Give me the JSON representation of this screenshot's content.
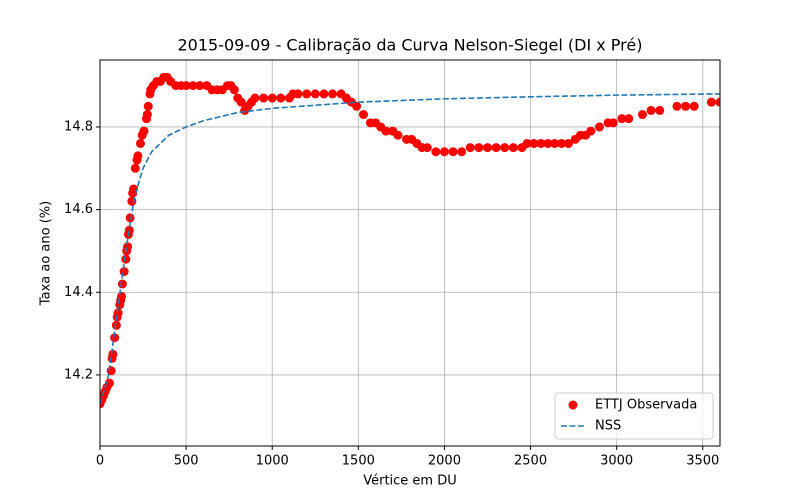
{
  "chart_data": {
    "type": "scatter",
    "title": "2015-09-09 - Calibração da Curva Nelson-Siegel (DI x Pré)",
    "xlabel": "Vértice em DU",
    "ylabel": "Taxa ao ano (%)",
    "xlim": [
      0,
      3600
    ],
    "ylim": [
      14.028,
      14.962
    ],
    "xticks": [
      0,
      500,
      1000,
      1500,
      2000,
      2500,
      3000,
      3500
    ],
    "yticks": [
      14.2,
      14.4,
      14.6,
      14.8
    ],
    "grid": true,
    "legend": "lower right",
    "series": [
      {
        "name": "ETTJ Observada",
        "type": "scatter",
        "color": "#ff0000",
        "x": [
          0,
          10,
          20,
          30,
          40,
          55,
          65,
          70,
          75,
          85,
          95,
          100,
          105,
          115,
          120,
          125,
          130,
          140,
          150,
          155,
          160,
          165,
          170,
          175,
          185,
          190,
          195,
          205,
          215,
          220,
          235,
          245,
          255,
          270,
          275,
          280,
          290,
          295,
          310,
          330,
          350,
          370,
          390,
          410,
          440,
          470,
          500,
          540,
          580,
          620,
          650,
          680,
          710,
          740,
          760,
          780,
          800,
          820,
          840,
          860,
          880,
          900,
          950,
          1000,
          1050,
          1100,
          1120,
          1150,
          1200,
          1250,
          1300,
          1350,
          1400,
          1430,
          1460,
          1490,
          1530,
          1570,
          1600,
          1630,
          1660,
          1700,
          1730,
          1780,
          1810,
          1840,
          1870,
          1900,
          1950,
          2000,
          2050,
          2100,
          2150,
          2200,
          2250,
          2300,
          2350,
          2400,
          2450,
          2480,
          2520,
          2560,
          2600,
          2640,
          2680,
          2720,
          2760,
          2790,
          2820,
          2850,
          2900,
          2950,
          2980,
          3030,
          3070,
          3150,
          3200,
          3250,
          3350,
          3400,
          3450,
          3550,
          3600
        ],
        "values": [
          14.13,
          14.14,
          14.15,
          14.16,
          14.17,
          14.18,
          14.21,
          14.24,
          14.25,
          14.29,
          14.32,
          14.34,
          14.35,
          14.37,
          14.38,
          14.39,
          14.42,
          14.45,
          14.48,
          14.5,
          14.51,
          14.54,
          14.55,
          14.58,
          14.62,
          14.64,
          14.65,
          14.7,
          14.72,
          14.73,
          14.76,
          14.78,
          14.79,
          14.82,
          14.83,
          14.85,
          14.88,
          14.89,
          14.9,
          14.91,
          14.91,
          14.92,
          14.92,
          14.91,
          14.9,
          14.9,
          14.9,
          14.9,
          14.9,
          14.9,
          14.89,
          14.89,
          14.89,
          14.9,
          14.9,
          14.89,
          14.87,
          14.86,
          14.84,
          14.85,
          14.86,
          14.87,
          14.87,
          14.87,
          14.87,
          14.87,
          14.88,
          14.88,
          14.88,
          14.88,
          14.88,
          14.88,
          14.88,
          14.87,
          14.86,
          14.85,
          14.83,
          14.81,
          14.81,
          14.8,
          14.79,
          14.79,
          14.78,
          14.77,
          14.77,
          14.76,
          14.75,
          14.75,
          14.74,
          14.74,
          14.74,
          14.74,
          14.75,
          14.75,
          14.75,
          14.75,
          14.75,
          14.75,
          14.75,
          14.76,
          14.76,
          14.76,
          14.76,
          14.76,
          14.76,
          14.76,
          14.77,
          14.78,
          14.78,
          14.79,
          14.8,
          14.81,
          14.81,
          14.82,
          14.82,
          14.83,
          14.84,
          14.84,
          14.85,
          14.85,
          14.85,
          14.86,
          14.86
        ]
      },
      {
        "name": "NSS",
        "type": "line",
        "color": "#1f77b4",
        "linestyle": "dashed",
        "x": [
          0,
          50,
          100,
          150,
          200,
          250,
          300,
          400,
          500,
          600,
          800,
          1000,
          1500,
          2000,
          2500,
          3000,
          3600
        ],
        "values": [
          14.13,
          14.2,
          14.35,
          14.5,
          14.63,
          14.7,
          14.74,
          14.78,
          14.8,
          14.815,
          14.835,
          14.845,
          14.86,
          14.868,
          14.873,
          14.877,
          14.88
        ]
      }
    ]
  }
}
